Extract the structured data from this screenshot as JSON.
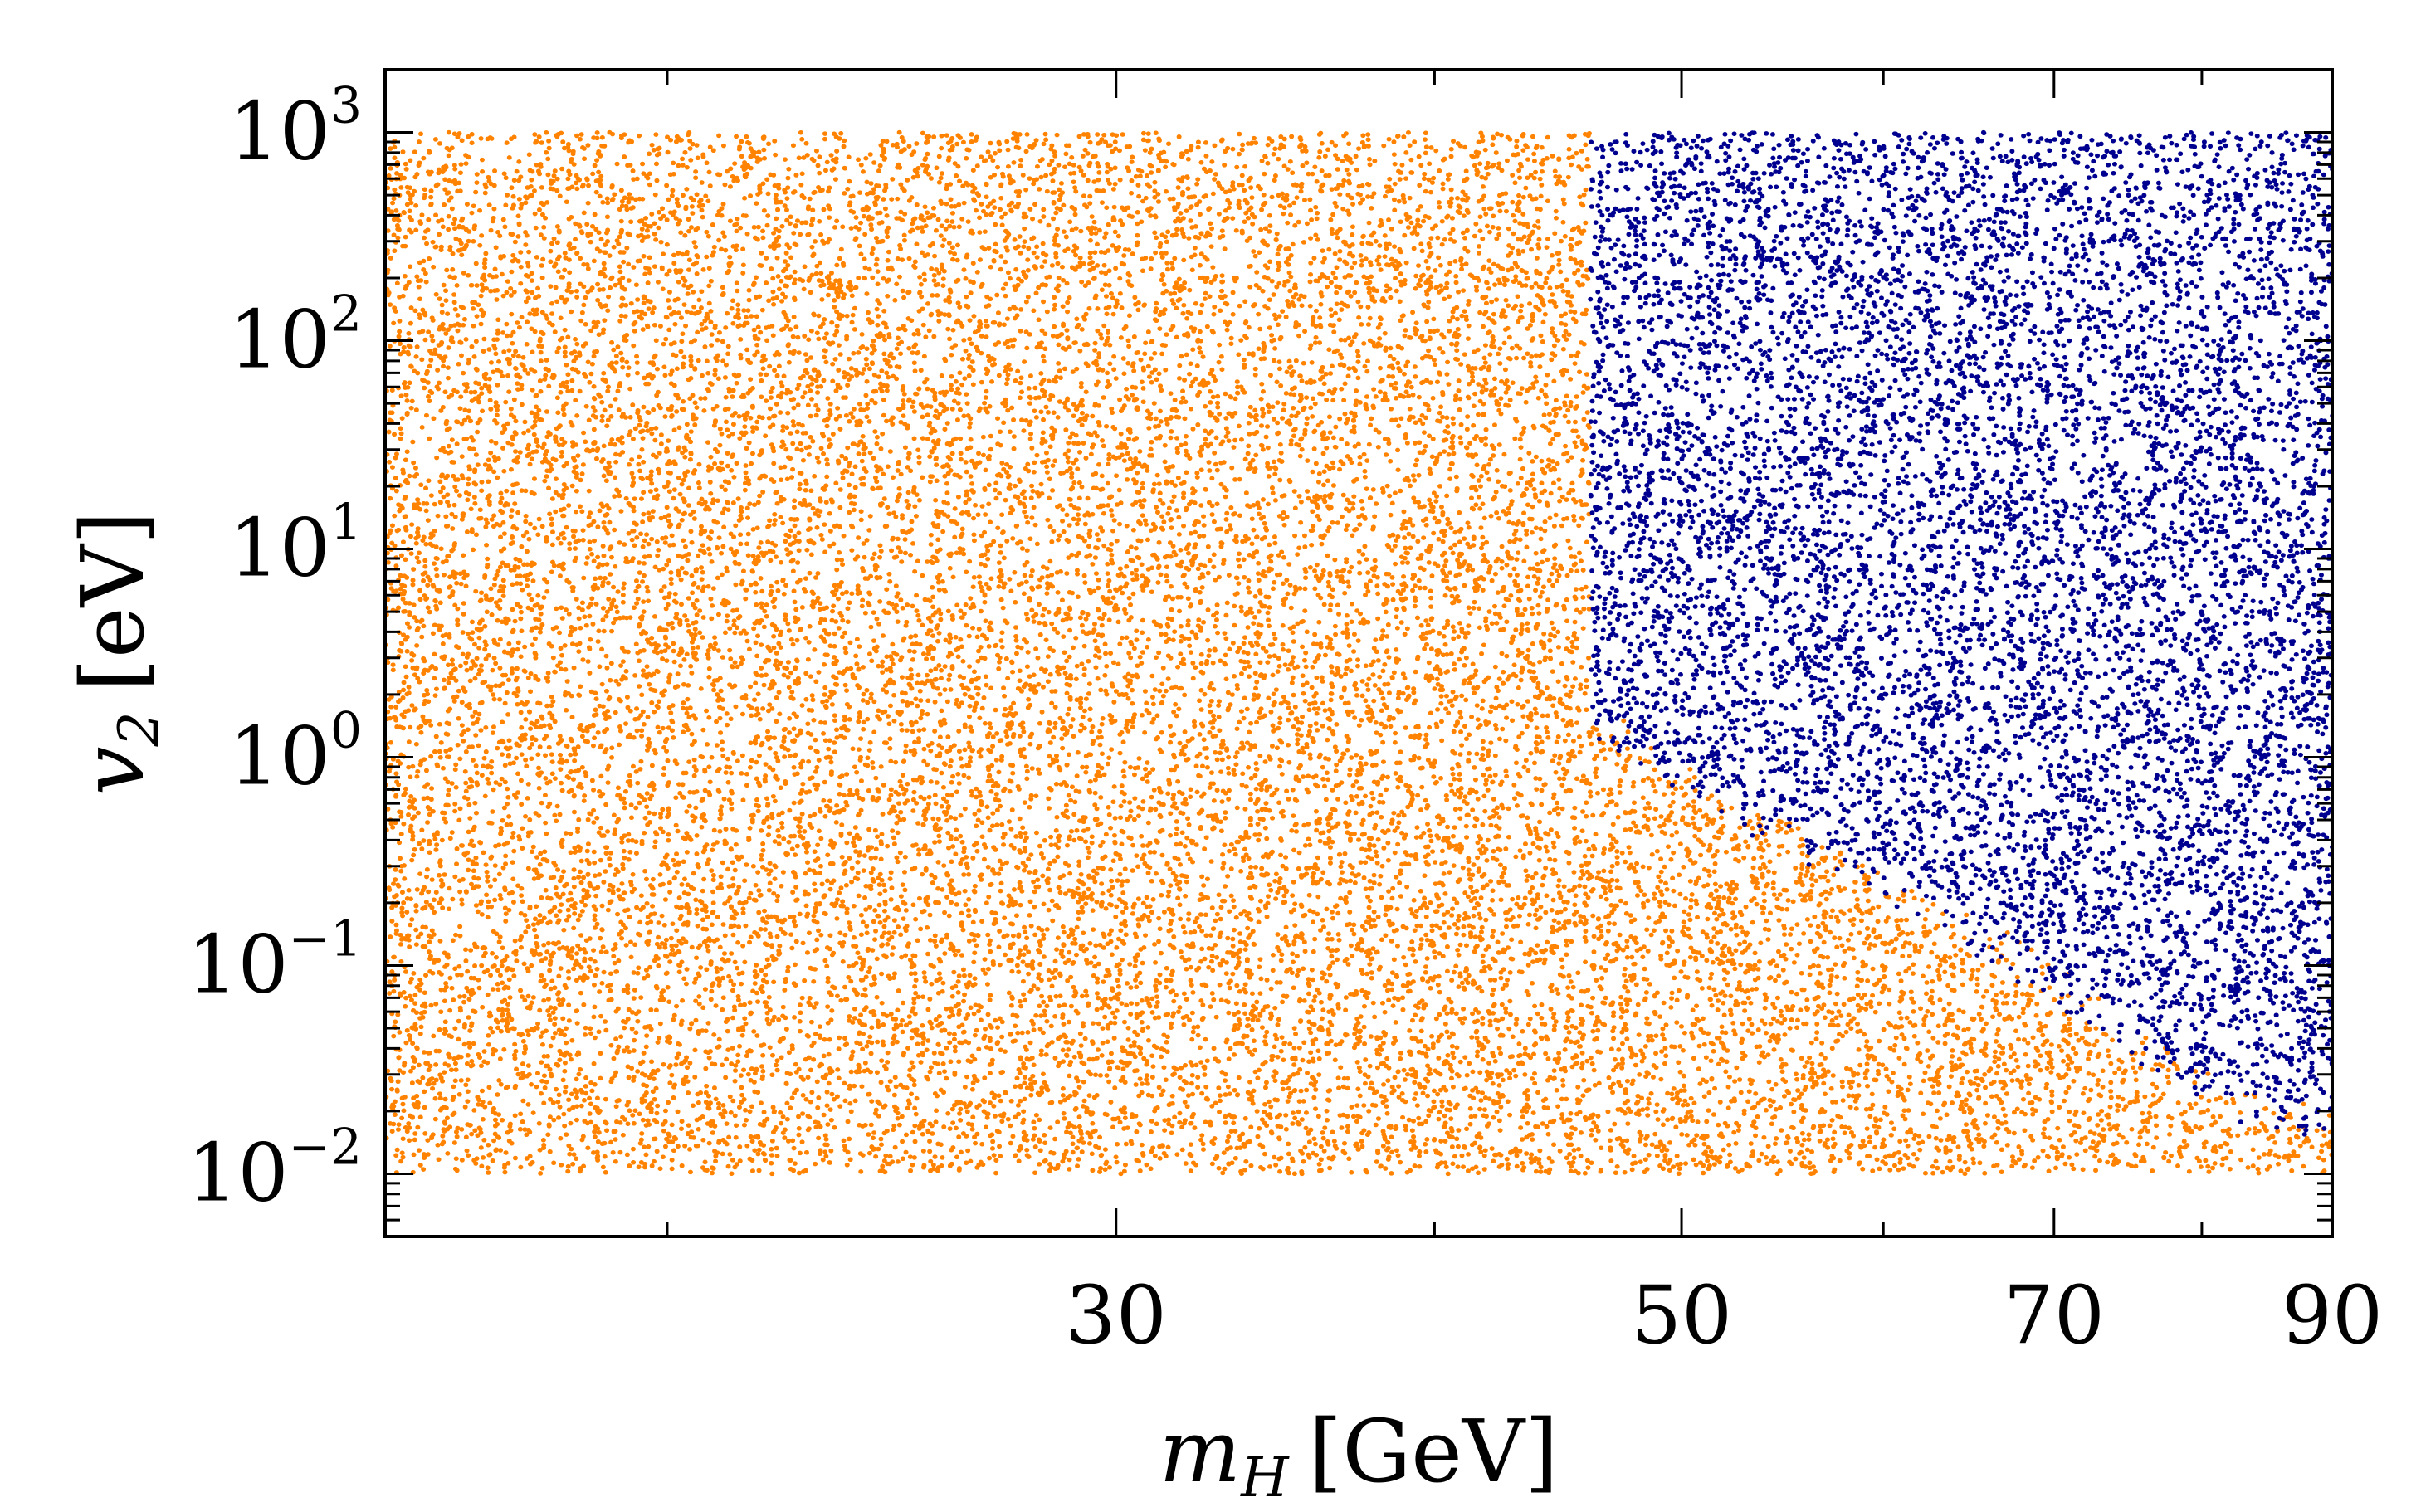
{
  "chart_data": {
    "type": "scatter",
    "title": "",
    "xlabel": {
      "symbol": "m",
      "subscript": "H",
      "unit": "[GeV]"
    },
    "ylabel": {
      "symbol": "v",
      "subscript": "2",
      "unit": "[eV]"
    },
    "x_scale": "log",
    "y_scale": "log",
    "xlim": [
      15.5,
      90
    ],
    "ylim": [
      0.005,
      2000
    ],
    "x_ticks": [
      {
        "value": 30,
        "label": "30"
      },
      {
        "value": 50,
        "label": "50"
      },
      {
        "value": 70,
        "label": "70"
      },
      {
        "value": 90,
        "label": "90"
      }
    ],
    "x_minor_ticks": [
      20,
      40,
      60,
      80
    ],
    "y_ticks": [
      {
        "value": 0.01,
        "base": "10",
        "exponent": "−2"
      },
      {
        "value": 0.1,
        "base": "10",
        "exponent": "−1"
      },
      {
        "value": 1,
        "base": "10",
        "exponent": "0"
      },
      {
        "value": 10,
        "base": "10",
        "exponent": "1"
      },
      {
        "value": 100,
        "base": "10",
        "exponent": "2"
      },
      {
        "value": 1000,
        "base": "10",
        "exponent": "3"
      }
    ],
    "series": [
      {
        "name": "orange points",
        "color": "#ff8200",
        "description_region": "full scan region; dense scatter for m_H 15.5–90 GeV, v_2 0.01–1000 eV",
        "x_range": [
          15.5,
          90
        ],
        "y_range": [
          0.01,
          1000
        ]
      },
      {
        "name": "blue points",
        "color": "#000090",
        "x_min": 46,
        "y_max": 1000,
        "lower_boundary": [
          {
            "x": 46,
            "y": 1.5
          },
          {
            "x": 50,
            "y": 0.8
          },
          {
            "x": 60,
            "y": 0.25
          },
          {
            "x": 70,
            "y": 0.08
          },
          {
            "x": 80,
            "y": 0.025
          },
          {
            "x": 90,
            "y": 0.016
          }
        ]
      }
    ],
    "grid": false,
    "legend": "none"
  }
}
